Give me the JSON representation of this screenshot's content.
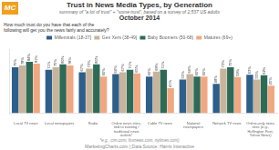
{
  "chart_data": {
    "type": "bar",
    "title": "Trust in News Media Types, by Generation",
    "subtitle": "summary of \"a lot of trust\" + \"some trust\", based on a survey of 2,537 US adults",
    "annotations": [
      "MC",
      "October 2014",
      "How much trust do you have that each of the\nfollowing will get you the news fairly and accurately?",
      "*e.g., cnn.com, foxnews.com, nytimes.com)",
      "MarketingCharts.com | Data Source: Harris Interactive"
    ],
    "categories": [
      "Local TV news",
      "Local newspapers",
      "Radio",
      "Online news sites,\ntied to existing /\ntraditional news\noutlets*",
      "Cable TV news",
      "National\nnewspapers",
      "Network TV news",
      "Online-only news\nsites (e.g.,\nHuffington Post,\nYahoo News)"
    ],
    "series": [
      {
        "name": "Millennials (18-37)",
        "color": "#2e5f8a",
        "values": [
          75,
          71,
          67,
          64,
          60,
          55,
          48,
          63
        ],
        "value_labels": [
          "75%",
          "71%",
          "67%",
          "64%",
          "60%",
          "55%",
          "48%",
          "63%"
        ]
      },
      {
        "name": "Gen Xers (38-49)",
        "color": "#c8b49a",
        "values": [
          78,
          75,
          73,
          67,
          68,
          64,
          73,
          55
        ],
        "value_labels": [
          "78%",
          "75%",
          "73%",
          "67%",
          "68%",
          "64%",
          "73%",
          "55%"
        ]
      },
      {
        "name": "Baby Boomers (50-68)",
        "color": "#2d6b57",
        "values": [
          84,
          80,
          80,
          71,
          71,
          60,
          75,
          62
        ],
        "value_labels": [
          "84%",
          "80%",
          "80%",
          "71%",
          "71%",
          "60%",
          "75%",
          "62%"
        ]
      },
      {
        "name": "Matures (69+)",
        "color": "#f0a882",
        "values": [
          81,
          78,
          60,
          65,
          41,
          60,
          59,
          45
        ],
        "value_labels": [
          "81%",
          "78%",
          "60%",
          "65%",
          "41%",
          "60%",
          "59%",
          "45%"
        ]
      }
    ],
    "ylim": [
      0,
      105
    ],
    "yticks": [],
    "grid": false,
    "legend": "top",
    "data_labels": true,
    "tick_labels": "x"
  }
}
